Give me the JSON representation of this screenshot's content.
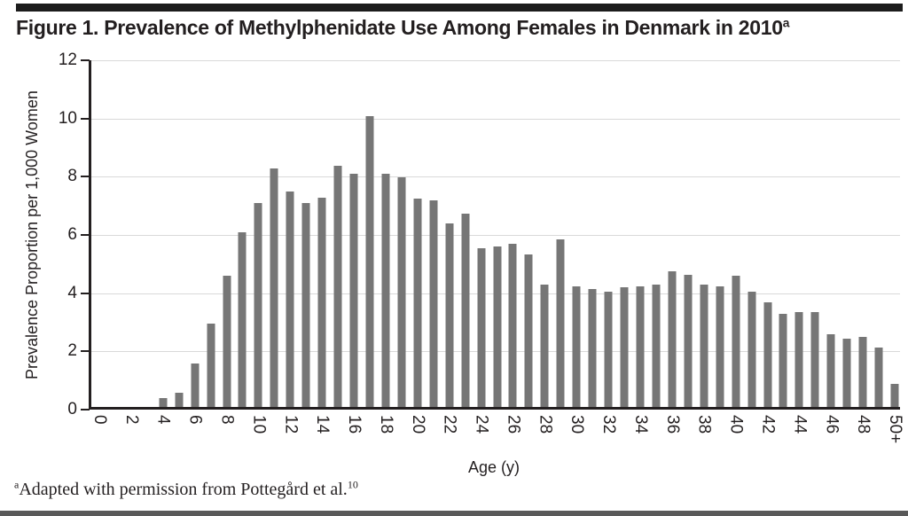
{
  "figure": {
    "title": "Figure 1. Prevalence of Methylphenidate Use Among Females in Denmark in 2010",
    "title_superscript": "a",
    "footnote_marker": "a",
    "footnote_text": "Adapted with permission from Pottegård et al.",
    "footnote_reference": "10"
  },
  "chart_data": {
    "type": "bar",
    "title": "Figure 1. Prevalence of Methylphenidate Use Among Females in Denmark in 2010",
    "xlabel": "Age (y)",
    "ylabel": "Prevalence Proportion per 1,000 Women",
    "ylim": [
      0,
      12
    ],
    "y_ticks": [
      0,
      2,
      4,
      6,
      8,
      10,
      12
    ],
    "grid": true,
    "legend_position": "none",
    "bar_color": "#767676",
    "gridline_color": "#d9d9d9",
    "axis_color": "#231f20",
    "categories": [
      "0",
      "1",
      "2",
      "3",
      "4",
      "5",
      "6",
      "7",
      "8",
      "9",
      "10",
      "11",
      "12",
      "13",
      "14",
      "15",
      "16",
      "17",
      "18",
      "19",
      "20",
      "21",
      "22",
      "23",
      "24",
      "25",
      "26",
      "27",
      "28",
      "29",
      "30",
      "31",
      "32",
      "33",
      "34",
      "35",
      "36",
      "37",
      "38",
      "39",
      "40",
      "41",
      "42",
      "43",
      "44",
      "45",
      "46",
      "47",
      "48",
      "49",
      "50+"
    ],
    "x_tick_labels_shown": [
      "0",
      "2",
      "4",
      "6",
      "8",
      "10",
      "12",
      "14",
      "16",
      "18",
      "20",
      "22",
      "24",
      "26",
      "28",
      "30",
      "32",
      "34",
      "36",
      "38",
      "40",
      "42",
      "44",
      "46",
      "48",
      "50+"
    ],
    "values": [
      0,
      0,
      0,
      0,
      0.3,
      0.5,
      1.5,
      2.85,
      4.5,
      6.0,
      7.0,
      8.2,
      7.4,
      7.0,
      7.2,
      8.3,
      8.0,
      10.0,
      8.0,
      7.9,
      7.15,
      7.1,
      6.3,
      6.65,
      5.45,
      5.5,
      5.6,
      5.25,
      4.2,
      5.75,
      4.15,
      4.05,
      3.95,
      4.1,
      4.15,
      4.2,
      4.65,
      4.55,
      4.2,
      4.15,
      4.5,
      3.95,
      3.6,
      3.2,
      3.25,
      3.25,
      2.5,
      2.35,
      2.4,
      2.05,
      0.8
    ]
  }
}
